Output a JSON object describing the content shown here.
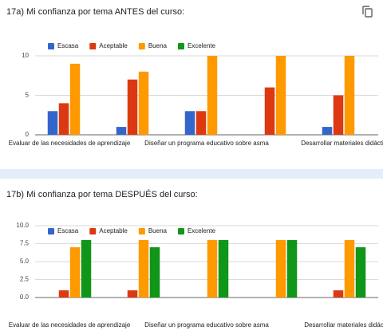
{
  "chart_data": [
    {
      "type": "bar",
      "title": "17a) Mi confianza por tema ANTES del curso:",
      "categories": [
        "Evaluar de las necesidades de aprendizaje",
        null,
        "Diseñar un programa educativo sobre asma",
        null,
        "Desarrollar materiales didáctic"
      ],
      "series": [
        {
          "name": "Escasa",
          "color": "#3366cc",
          "values": [
            3,
            1,
            3,
            0,
            1
          ]
        },
        {
          "name": "Aceptable",
          "color": "#dc3912",
          "values": [
            4,
            7,
            3,
            6,
            5
          ]
        },
        {
          "name": "Buena",
          "color": "#ff9900",
          "values": [
            9,
            8,
            10,
            10,
            10
          ]
        },
        {
          "name": "Excelente",
          "color": "#109618",
          "values": [
            0,
            0,
            0,
            0,
            0
          ]
        }
      ],
      "ylim": [
        0,
        10
      ],
      "yticks": [
        0,
        5,
        10
      ],
      "grid": true,
      "legend": "top"
    },
    {
      "type": "bar",
      "title": "17b) Mi confianza por tema DESPUÉS del curso:",
      "categories": [
        "Evaluar de las necesidades de aprendizaje",
        null,
        "Diseñar un programa educativo sobre asma",
        null,
        "Desarrollar materiales didác"
      ],
      "series": [
        {
          "name": "Escasa",
          "color": "#3366cc",
          "values": [
            0,
            0,
            0,
            0,
            0
          ]
        },
        {
          "name": "Aceptable",
          "color": "#dc3912",
          "values": [
            1,
            1,
            0,
            0,
            1
          ]
        },
        {
          "name": "Buena",
          "color": "#ff9900",
          "values": [
            7,
            8,
            8,
            8,
            8
          ]
        },
        {
          "name": "Excelente",
          "color": "#109618",
          "values": [
            8,
            7,
            8,
            8,
            7
          ]
        }
      ],
      "ylim": [
        0,
        10
      ],
      "yticks": [
        {
          "value": 0,
          "label": "0.0"
        },
        2.5,
        {
          "value": 5,
          "label": "5.0"
        },
        7.5,
        {
          "value": 10,
          "label": "10.0"
        }
      ],
      "grid": true,
      "legend": "top"
    }
  ]
}
